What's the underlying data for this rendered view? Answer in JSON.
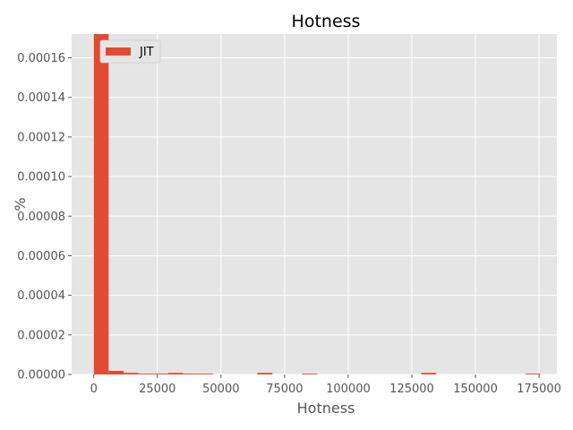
{
  "chart_data": {
    "type": "bar",
    "title": "Hotness",
    "xlabel": "Hotness",
    "ylabel": "%",
    "xlim": [
      -8700,
      182000
    ],
    "ylim": [
      0,
      0.000172
    ],
    "xticks": [
      0,
      25000,
      50000,
      75000,
      100000,
      125000,
      150000,
      175000
    ],
    "yticks": [
      0.0,
      2e-05,
      4e-05,
      6e-05,
      8e-05,
      0.0001,
      0.00012,
      0.00014,
      0.00016
    ],
    "xtick_labels": [
      "0",
      "25000",
      "50000",
      "75000",
      "100000",
      "125000",
      "150000",
      "175000"
    ],
    "ytick_labels": [
      "0.00000",
      "0.00002",
      "0.00004",
      "0.00006",
      "0.00008",
      "0.00010",
      "0.00012",
      "0.00014",
      "0.00016"
    ],
    "grid": true,
    "legend": {
      "position": "top-left",
      "entries": [
        "JIT"
      ]
    },
    "colors": {
      "bar": "#E24A33",
      "background": "#E5E5E5",
      "grid": "#FFFFFF"
    },
    "bin_width": 5850,
    "series": [
      {
        "name": "JIT",
        "bins": [
          {
            "x": 0,
            "value": 0.000172
          },
          {
            "x": 5850,
            "value": 1.8e-06
          },
          {
            "x": 11700,
            "value": 8e-07
          },
          {
            "x": 17550,
            "value": 4e-07
          },
          {
            "x": 23400,
            "value": 4e-07
          },
          {
            "x": 29250,
            "value": 8e-07
          },
          {
            "x": 35100,
            "value": 4e-07
          },
          {
            "x": 40950,
            "value": 4e-07
          },
          {
            "x": 64350,
            "value": 8e-07
          },
          {
            "x": 81900,
            "value": 4e-07
          },
          {
            "x": 128700,
            "value": 8e-07
          },
          {
            "x": 169650,
            "value": 4e-07
          }
        ]
      }
    ]
  }
}
